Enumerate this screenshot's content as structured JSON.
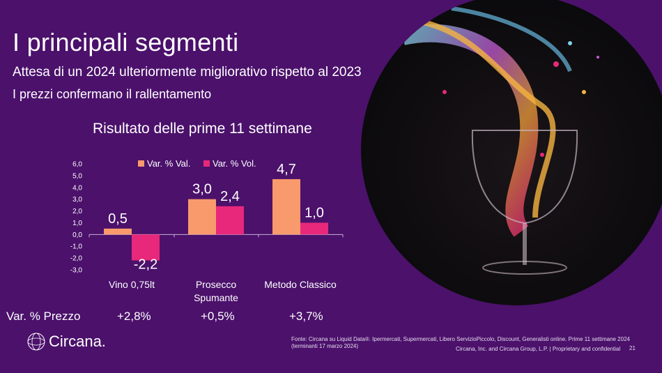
{
  "header": {
    "title": "I principali segmenti",
    "subtitle1": "Attesa di un 2024 ulteriormente migliorativo rispetto al 2023",
    "subtitle2": "I prezzi confermano il rallentamento"
  },
  "chart_data": {
    "type": "bar",
    "title": "Risultato delle prime 11 settimane",
    "categories": [
      "Vino 0,75lt",
      "Prosecco|Spumante",
      "Metodo Classico"
    ],
    "series": [
      {
        "name": "Var. % Val.",
        "color": "#f99a6c",
        "values": [
          0.5,
          3.0,
          4.7
        ],
        "labels": [
          "0,5",
          "3,0",
          "4,7"
        ]
      },
      {
        "name": "Var. % Vol.",
        "color": "#e8287a",
        "values": [
          -2.2,
          2.4,
          1.0
        ],
        "labels": [
          "-2,2",
          "2,4",
          "1,0"
        ]
      }
    ],
    "ylim": [
      -3,
      6
    ],
    "yticks": [
      6,
      5,
      4,
      3,
      2,
      1,
      0,
      -1,
      -2,
      -3
    ],
    "ytick_labels": [
      "6,0",
      "5,0",
      "4,0",
      "3,0",
      "2,0",
      "1,0",
      "0,0",
      "-1,0",
      "-2,0",
      "-3,0"
    ],
    "legend": "top-center",
    "grid": false
  },
  "price_row": {
    "label": "Var. % Prezzo",
    "values": [
      "+2,8%",
      "+0,5%",
      "+3,7%"
    ]
  },
  "footer": {
    "source": "Fonte: Circana su Liquid Data®.  Ipermercati, Supermercati, Libero ServizioPiccolo, Discount, Generalisti online. Prime 11 settimane 2024",
    "source2": "(terminanti 17 marzo 2024)",
    "copyright": "Circana, Inc. and Circana Group, L.P. |  Proprietary and confidential",
    "page": "21",
    "logo": "Circana."
  }
}
